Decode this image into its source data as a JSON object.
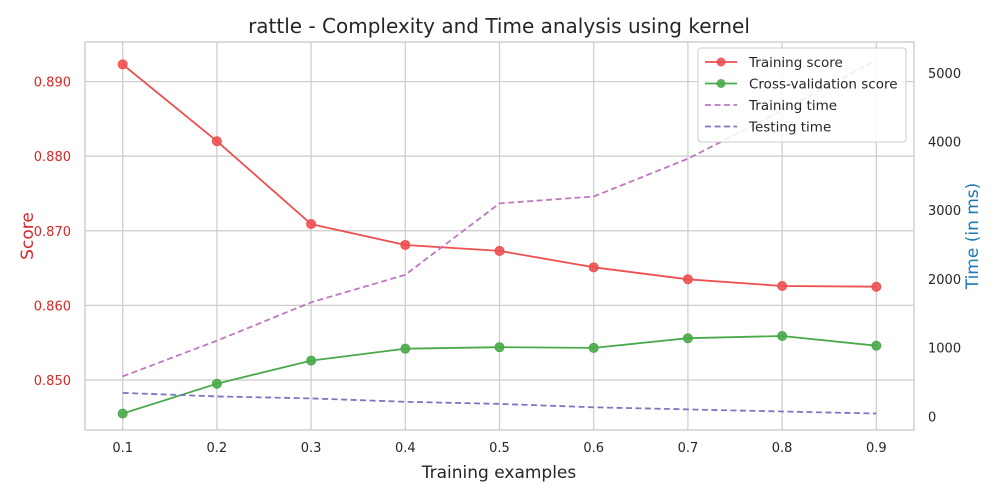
{
  "chart_data": {
    "type": "line",
    "title": "rattle - Complexity and Time analysis using  kernel",
    "xlabel": "Training examples",
    "ylabel_left": "Score",
    "ylabel_right": "Time (in ms)",
    "x": [
      0.1,
      0.2,
      0.3,
      0.4,
      0.5,
      0.6,
      0.7,
      0.8,
      0.9
    ],
    "xlim": [
      0.06,
      0.94
    ],
    "ylim_left": [
      0.8433,
      0.8953
    ],
    "ylim_right": [
      -200,
      5450
    ],
    "x_ticks": [
      "0.1",
      "0.2",
      "0.3",
      "0.4",
      "0.5",
      "0.6",
      "0.7",
      "0.8",
      "0.9"
    ],
    "x_tick_values": [
      0.1,
      0.2,
      0.3,
      0.4,
      0.5,
      0.6,
      0.7,
      0.8,
      0.9
    ],
    "left_ticks": [
      "0.850",
      "0.860",
      "0.870",
      "0.880",
      "0.890"
    ],
    "left_tick_values": [
      0.85,
      0.86,
      0.87,
      0.88,
      0.89
    ],
    "right_ticks": [
      "0",
      "1000",
      "2000",
      "3000",
      "4000",
      "5000"
    ],
    "right_tick_values": [
      0,
      1000,
      2000,
      3000,
      4000,
      5000
    ],
    "grid": true,
    "legend_position": "top-right",
    "colors": {
      "left_axis": "#d62728",
      "right_axis": "#1f77b4"
    },
    "series": [
      {
        "name": "Training score",
        "axis": "left",
        "style": "solid-marker",
        "color": "#ee5050",
        "values": [
          0.8923,
          0.882,
          0.8709,
          0.8681,
          0.8673,
          0.8651,
          0.8635,
          0.8626,
          0.8625
        ]
      },
      {
        "name": "Cross-validation score",
        "axis": "left",
        "style": "solid-marker",
        "color": "#4aaa4a",
        "values": [
          0.8455,
          0.8495,
          0.8526,
          0.8542,
          0.8544,
          0.8543,
          0.8556,
          0.8559,
          0.8546
        ]
      },
      {
        "name": "Training time",
        "axis": "right",
        "style": "dashed",
        "color": "#bf77c2",
        "values": [
          580,
          1100,
          1660,
          2060,
          3100,
          3200,
          3750,
          4450,
          5190
        ]
      },
      {
        "name": "Testing time",
        "axis": "right",
        "style": "dashed",
        "color": "#7a78c4",
        "values": [
          340,
          290,
          260,
          210,
          180,
          130,
          100,
          70,
          40
        ]
      }
    ]
  }
}
